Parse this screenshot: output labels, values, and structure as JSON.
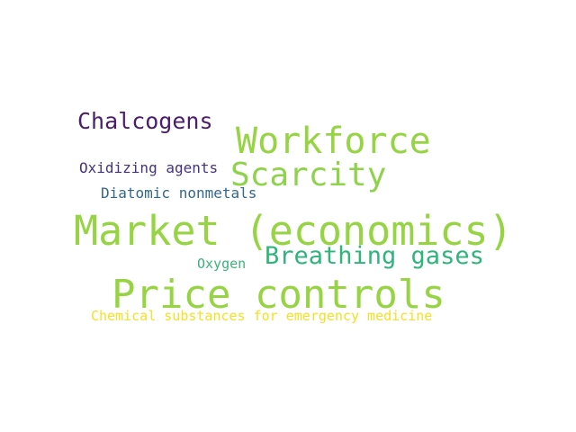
{
  "words": {
    "market": {
      "text": "Market (economics)",
      "color": "#97d444"
    },
    "price": {
      "text": "Price controls",
      "color": "#97d444"
    },
    "workforce": {
      "text": "Workforce",
      "color": "#97d444"
    },
    "scarcity": {
      "text": "Scarcity",
      "color": "#8fd24c"
    },
    "breathing": {
      "text": "Breathing gases",
      "color": "#2fb47c"
    },
    "chalcogens": {
      "text": "Chalcogens",
      "color": "#4a1e6a"
    },
    "oxidizing": {
      "text": "Oxidizing agents",
      "color": "#46337e"
    },
    "diatomic": {
      "text": "Diatomic nonmetals",
      "color": "#31688e"
    },
    "oxygen": {
      "text": "Oxygen",
      "color": "#3ab47a"
    },
    "chemical": {
      "text": "Chemical substances for emergency medicine",
      "color": "#f5e024"
    }
  }
}
